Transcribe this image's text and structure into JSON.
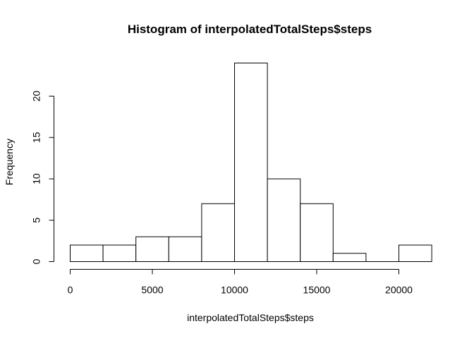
{
  "chart_data": {
    "type": "bar",
    "title": "Histogram of interpolatedTotalSteps$steps",
    "xlabel": "interpolatedTotalSteps$steps",
    "ylabel": "Frequency",
    "bin_edges": [
      0,
      2000,
      4000,
      6000,
      8000,
      10000,
      12000,
      14000,
      16000,
      18000,
      20000,
      22000
    ],
    "values": [
      2,
      2,
      3,
      3,
      7,
      24,
      10,
      7,
      1,
      0,
      2
    ],
    "xlim": [
      0,
      22000
    ],
    "ylim": [
      0,
      24
    ],
    "x_ticks": [
      0,
      5000,
      10000,
      15000,
      20000
    ],
    "y_ticks": [
      0,
      5,
      10,
      15,
      20
    ],
    "grid": false,
    "bar_fill": "#ffffff",
    "bar_stroke": "#000000"
  }
}
